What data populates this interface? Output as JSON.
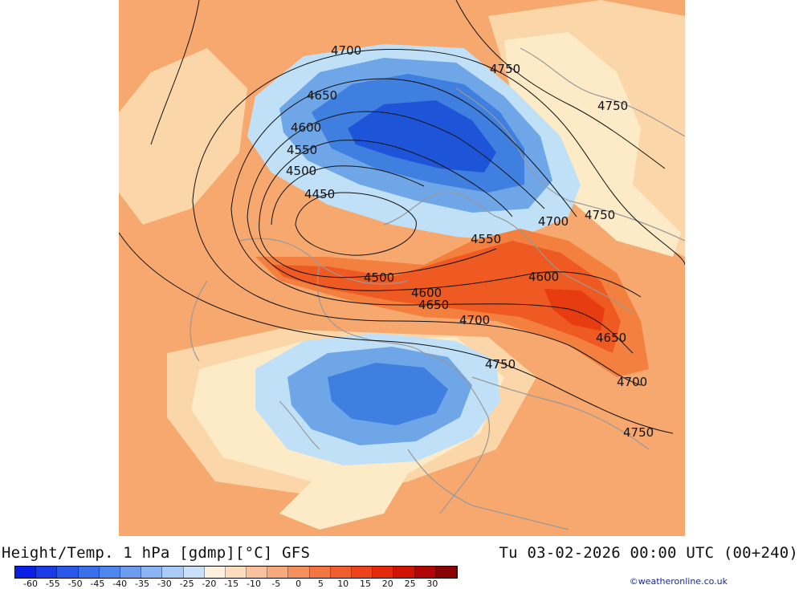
{
  "map": {
    "type": "weather-model-map",
    "field": "geopotential height and temperature at 1 hPa",
    "contour_labels": [
      "4700",
      "4750",
      "4750",
      "4650",
      "4600",
      "4550",
      "4500",
      "4450",
      "4700",
      "4750",
      "4550",
      "4500",
      "4600",
      "4600",
      "4650",
      "4700",
      "4650",
      "4750",
      "4700",
      "4750"
    ],
    "colors": {
      "ocean_base": "#f6a86e",
      "warm_pale": "#fbd6a8",
      "cream": "#fdebc8",
      "light_blue": "#bfe0f7",
      "mid_blue": "#6fa6e8",
      "blue": "#3f7fe0",
      "deep_blue": "#1e55d8",
      "orange": "#f3803e",
      "red_orange": "#ee5a22",
      "red": "#e63c10",
      "border_line": "#999999",
      "contour_line": "#111111"
    }
  },
  "title_left": "Height/Temp. 1 hPa [gdmp][°C] GFS",
  "title_right": "Tu 03-02-2026 00:00 UTC (00+240)",
  "colorbar": {
    "colors": [
      "#0a1ee6",
      "#1a3ce8",
      "#2a58ea",
      "#3a70ec",
      "#4f86ee",
      "#6b9cf0",
      "#8ab4f2",
      "#a9cbf5",
      "#c9e0f8",
      "#fdf0dc",
      "#fbdcbc",
      "#f9c29a",
      "#f7a97c",
      "#f5905e",
      "#f37642",
      "#f05e2c",
      "#ec4418",
      "#e42a0a",
      "#d01404",
      "#b00606",
      "#8a0202"
    ],
    "labels": [
      "-60",
      "-55",
      "-50",
      "-45",
      "-40",
      "-35",
      "-30",
      "-25",
      "-20",
      "-15",
      "-10",
      "-5",
      "0",
      "5",
      "10",
      "15",
      "20",
      "25",
      "30"
    ]
  },
  "credit": "©weatheronline.co.uk"
}
